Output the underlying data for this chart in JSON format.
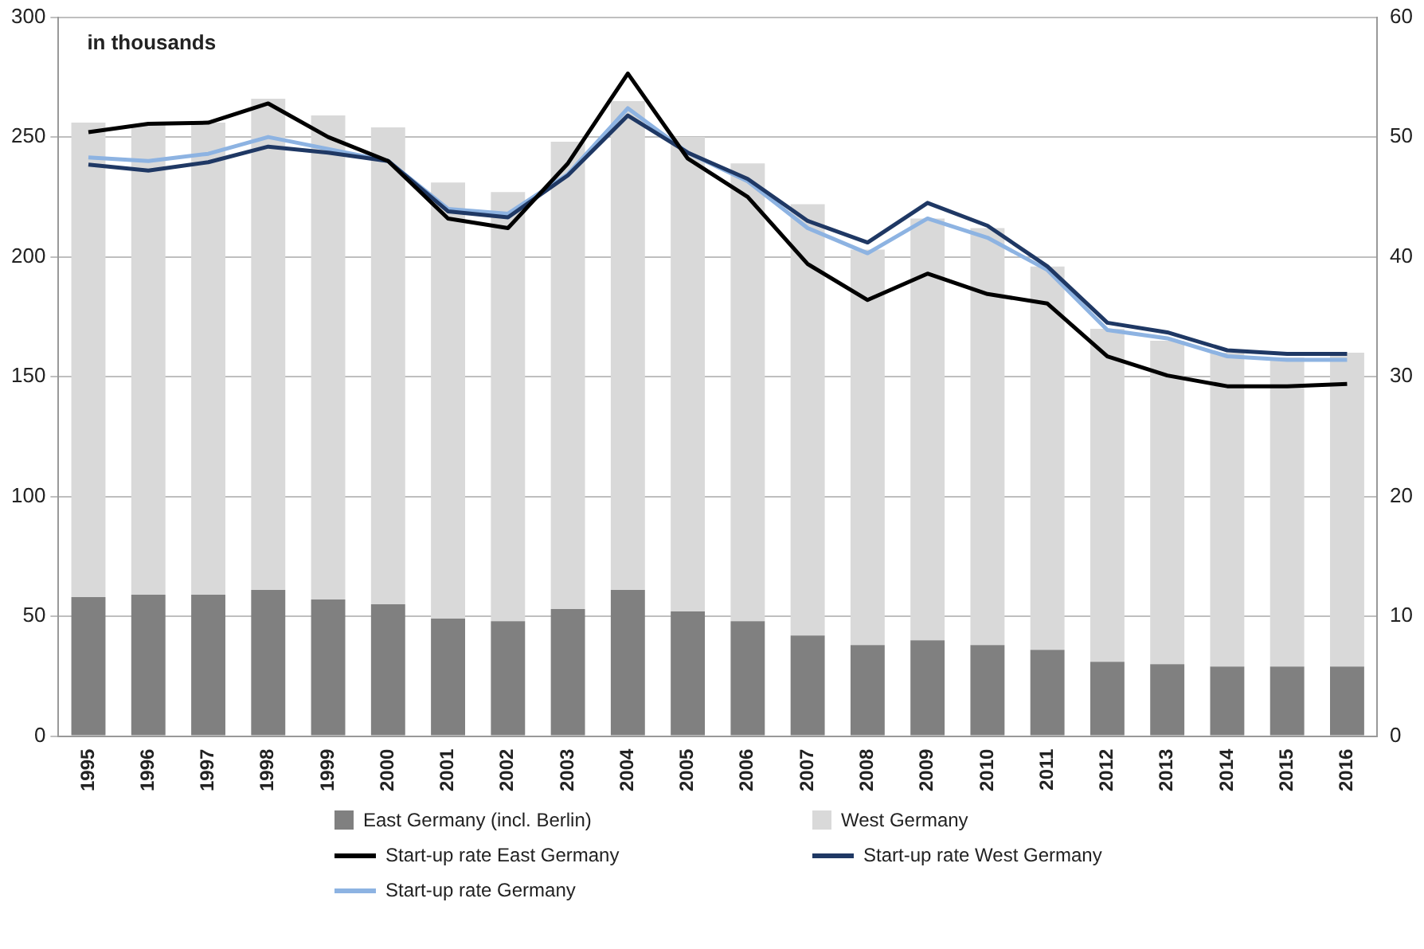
{
  "chart_data": {
    "type": "bar",
    "stacked": true,
    "categories": [
      "1995",
      "1996",
      "1997",
      "1998",
      "1999",
      "2000",
      "2001",
      "2002",
      "2003",
      "2004",
      "2005",
      "2006",
      "2007",
      "2008",
      "2009",
      "2010",
      "2011",
      "2012",
      "2013",
      "2014",
      "2015",
      "2016"
    ],
    "series": [
      {
        "name": "East Germany (incl. Berlin)",
        "color": "#808080",
        "values": [
          58,
          59,
          59,
          61,
          57,
          55,
          49,
          48,
          53,
          61,
          52,
          48,
          42,
          38,
          40,
          38,
          36,
          31,
          30,
          29,
          29,
          29
        ]
      },
      {
        "name": "West Germany",
        "color": "#d9d9d9",
        "values": [
          198,
          196,
          197,
          205,
          202,
          199,
          182,
          179,
          195,
          204,
          198,
          191,
          180,
          165,
          176,
          174,
          160,
          139,
          135,
          131,
          129,
          131
        ]
      },
      {
        "name": "Start-up rate East Germany",
        "type": "line",
        "axis": "y2",
        "color": "#000000",
        "values": [
          50.4,
          51.1,
          51.2,
          52.8,
          50.0,
          48.0,
          43.2,
          42.4,
          47.8,
          55.3,
          48.2,
          45.0,
          39.4,
          36.4,
          38.6,
          36.9,
          36.1,
          31.7,
          30.1,
          29.2,
          29.2,
          29.4
        ]
      },
      {
        "name": "Start-up rate West Germany",
        "type": "line",
        "axis": "y2",
        "color": "#1f3864",
        "values": [
          47.7,
          47.2,
          47.9,
          49.2,
          48.7,
          48.0,
          43.8,
          43.3,
          46.8,
          51.8,
          48.7,
          46.5,
          43.0,
          41.2,
          44.5,
          42.6,
          39.2,
          34.5,
          33.7,
          32.2,
          31.9,
          31.9
        ]
      },
      {
        "name": "Start-up rate Germany",
        "type": "line",
        "axis": "y2",
        "color": "#8db3e2",
        "values": [
          48.3,
          48.0,
          48.6,
          50.0,
          49.0,
          48.0,
          44.0,
          43.6,
          46.9,
          52.4,
          48.7,
          46.3,
          42.4,
          40.3,
          43.2,
          41.6,
          38.9,
          33.9,
          33.2,
          31.7,
          31.4,
          31.4
        ]
      }
    ],
    "ylim": [
      0,
      300
    ],
    "yticks": [
      0,
      50,
      100,
      150,
      200,
      250,
      300
    ],
    "y2lim": [
      0,
      60
    ],
    "y2ticks": [
      0,
      10,
      20,
      30,
      40,
      50,
      60
    ],
    "grid": "y",
    "legend": "bottom",
    "marker": "none",
    "annotations": [
      "in thousands"
    ]
  }
}
